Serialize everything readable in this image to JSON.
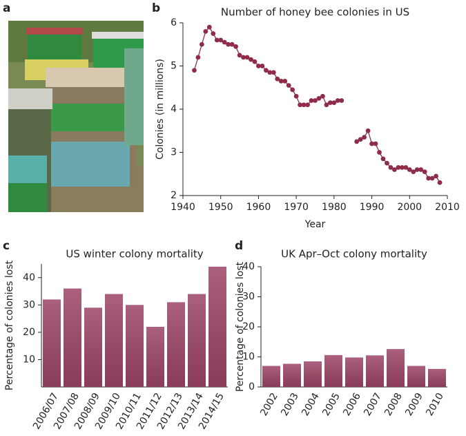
{
  "photo": {
    "label": "a"
  },
  "chart_data": [
    {
      "type": "line",
      "label": "b",
      "title": "Number of honey bee colonies in US",
      "xlabel": "Year",
      "ylabel": "Colonies (in millions)",
      "x": [
        1943,
        1944,
        1945,
        1946,
        1947,
        1948,
        1949,
        1950,
        1951,
        1952,
        1953,
        1954,
        1955,
        1956,
        1957,
        1958,
        1959,
        1960,
        1961,
        1962,
        1963,
        1964,
        1965,
        1966,
        1967,
        1968,
        1969,
        1970,
        1971,
        1972,
        1973,
        1974,
        1975,
        1976,
        1977,
        1978,
        1979,
        1980,
        1981,
        1982,
        1983,
        1984,
        1985,
        1986,
        1987,
        1988,
        1989,
        1990,
        1991,
        1992,
        1993,
        1994,
        1995,
        1996,
        1997,
        1998,
        1999,
        2000,
        2001,
        2002,
        2003,
        2004,
        2005,
        2006,
        2007,
        2008
      ],
      "values": [
        4.9,
        5.2,
        5.5,
        5.8,
        5.9,
        5.75,
        5.6,
        5.6,
        5.55,
        5.5,
        5.5,
        5.45,
        5.25,
        5.2,
        5.2,
        5.15,
        5.1,
        5.0,
        5.0,
        4.9,
        4.85,
        4.85,
        4.7,
        4.65,
        4.65,
        4.55,
        4.45,
        4.3,
        4.1,
        4.1,
        4.1,
        4.2,
        4.2,
        4.25,
        4.3,
        4.1,
        4.15,
        4.15,
        4.2,
        4.2,
        null,
        null,
        null,
        3.25,
        3.3,
        3.35,
        3.5,
        3.2,
        3.2,
        3.0,
        2.85,
        2.75,
        2.65,
        2.6,
        2.65,
        2.65,
        2.65,
        2.6,
        2.55,
        2.6,
        2.6,
        2.55,
        2.4,
        2.4,
        2.45,
        2.3
      ],
      "color": "#8e2c4a",
      "xlim": [
        1940,
        2010
      ],
      "xticks": [
        1940,
        1950,
        1960,
        1970,
        1980,
        1990,
        2000,
        2010
      ],
      "ylim": [
        2,
        6
      ],
      "yticks": [
        2,
        3,
        4,
        5,
        6
      ]
    },
    {
      "type": "bar",
      "label": "c",
      "title": "US winter colony mortality",
      "ylabel": "Percentage of colonies lost",
      "categories": [
        "2006/07",
        "2007/08",
        "2008/09",
        "2009/10",
        "2010/11",
        "2011/12",
        "2012/13",
        "2013/14",
        "2014/15"
      ],
      "values": [
        32,
        36,
        29,
        34,
        30,
        22,
        31,
        34,
        44
      ],
      "color": "#9c4566",
      "ylim": [
        0,
        45
      ],
      "yticks": [
        10,
        20,
        30,
        40
      ]
    },
    {
      "type": "bar",
      "label": "d",
      "title": "UK Apr–Oct colony mortality",
      "ylabel": "Percentage of colonies lost",
      "categories": [
        "2002",
        "2003",
        "2004",
        "2005",
        "2006",
        "2007",
        "2008",
        "2009",
        "2010"
      ],
      "values": [
        7,
        7.7,
        8.5,
        10.6,
        9.8,
        10.5,
        12.6,
        7,
        6
      ],
      "color": "#9c4566",
      "ylim": [
        0,
        40
      ],
      "yticks": [
        0,
        10,
        20,
        30,
        40
      ]
    }
  ]
}
